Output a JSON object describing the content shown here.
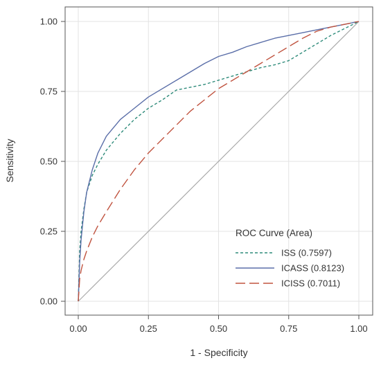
{
  "chart_data": {
    "type": "line",
    "title": "",
    "xlabel": "1 - Specificity",
    "ylabel": "Sensitivity",
    "xlim": [
      0,
      1
    ],
    "ylim": [
      0,
      1
    ],
    "xticks": [
      "0.00",
      "0.25",
      "0.50",
      "0.75",
      "1.00"
    ],
    "yticks": [
      "0.00",
      "0.25",
      "0.50",
      "0.75",
      "1.00"
    ],
    "grid": true,
    "reference_line": true,
    "reference_line_color": "#aaaaaa",
    "legend_title": "ROC Curve (Area)",
    "legend_position": "bottom-right",
    "series": [
      {
        "name": "ISS",
        "area": "(0.7597)",
        "color": "#2e8b7a",
        "dash": "short-dash",
        "x": [
          0.0,
          0.005,
          0.01,
          0.02,
          0.03,
          0.05,
          0.07,
          0.1,
          0.15,
          0.2,
          0.25,
          0.3,
          0.35,
          0.4,
          0.45,
          0.5,
          0.55,
          0.6,
          0.65,
          0.7,
          0.75,
          0.8,
          0.85,
          0.9,
          0.95,
          1.0
        ],
        "y": [
          0.0,
          0.18,
          0.25,
          0.33,
          0.39,
          0.45,
          0.49,
          0.54,
          0.6,
          0.65,
          0.69,
          0.72,
          0.755,
          0.765,
          0.775,
          0.79,
          0.805,
          0.82,
          0.835,
          0.845,
          0.86,
          0.89,
          0.92,
          0.95,
          0.975,
          1.0
        ]
      },
      {
        "name": "ICASS",
        "area": "(0.8123)",
        "color": "#5a6ea8",
        "dash": "solid",
        "x": [
          0.0,
          0.005,
          0.01,
          0.02,
          0.03,
          0.05,
          0.07,
          0.1,
          0.15,
          0.2,
          0.25,
          0.3,
          0.35,
          0.4,
          0.45,
          0.5,
          0.55,
          0.6,
          0.65,
          0.7,
          0.75,
          0.8,
          0.85,
          0.9,
          0.95,
          1.0
        ],
        "y": [
          0.0,
          0.14,
          0.22,
          0.32,
          0.39,
          0.47,
          0.53,
          0.59,
          0.65,
          0.69,
          0.73,
          0.76,
          0.79,
          0.82,
          0.85,
          0.875,
          0.89,
          0.91,
          0.925,
          0.94,
          0.95,
          0.96,
          0.97,
          0.98,
          0.99,
          1.0
        ]
      },
      {
        "name": "ICISS",
        "area": "(0.7011)",
        "color": "#c0533f",
        "dash": "long-dash",
        "x": [
          0.0,
          0.005,
          0.01,
          0.02,
          0.03,
          0.05,
          0.07,
          0.1,
          0.15,
          0.2,
          0.25,
          0.3,
          0.35,
          0.4,
          0.45,
          0.5,
          0.55,
          0.6,
          0.65,
          0.7,
          0.75,
          0.8,
          0.85,
          0.9,
          0.95,
          1.0
        ],
        "y": [
          0.0,
          0.08,
          0.11,
          0.15,
          0.18,
          0.23,
          0.27,
          0.32,
          0.4,
          0.47,
          0.53,
          0.58,
          0.63,
          0.68,
          0.72,
          0.76,
          0.79,
          0.82,
          0.85,
          0.88,
          0.91,
          0.94,
          0.965,
          0.98,
          0.99,
          1.0
        ]
      }
    ]
  }
}
